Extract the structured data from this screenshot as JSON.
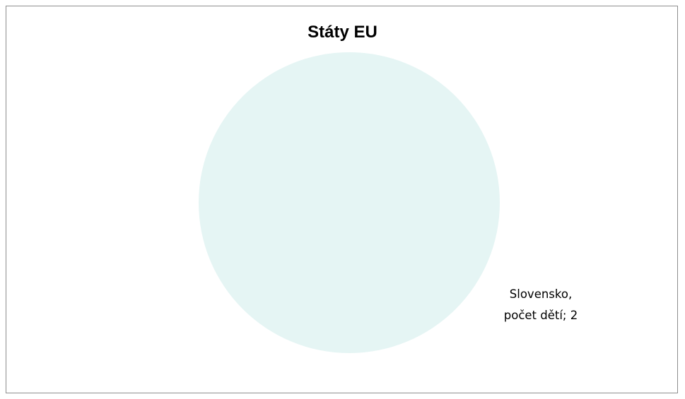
{
  "chart_data": {
    "type": "pie",
    "title": "Státy EU",
    "slices": [
      {
        "label_line1": "Slovensko,",
        "label_line2": "počet dětí; 2",
        "category": "Slovensko",
        "series": "počet dětí",
        "value": 2,
        "color": "#e5f5f4"
      }
    ],
    "legend": "none"
  }
}
